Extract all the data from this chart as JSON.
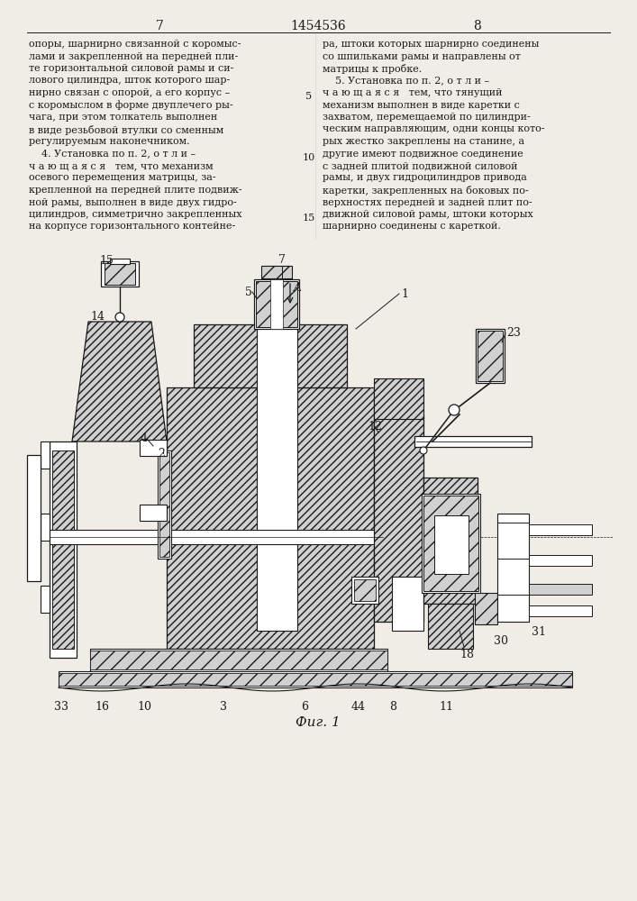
{
  "page_width": 7.07,
  "page_height": 10.0,
  "background_color": "#f0ede6",
  "header_left_number": "7",
  "header_center_number": "1454536",
  "header_right_number": "8",
  "text_color": "#1a1a1a",
  "line_color": "#1a1a1a",
  "figure_caption": "Фиг. 1",
  "left_column_text": [
    "опоры, шарнирно связанной с коромыс-",
    "лами и закрепленной на передней пли-",
    "те горизонтальной силовой рамы и си-",
    "лового цилиндра, шток которого шар-",
    "нирно связан с опорой, а его корпус –",
    "с коромыслом в форме двуплечего ры-",
    "чага, при этом толкатель выполнен",
    "в виде резьбовой втулки со сменным",
    "регулируемым наконечником.",
    "    4. Установка по п. 2, о т л и –",
    "ч а ю щ а я с я   тем, что механизм",
    "осевого перемещения матрицы, за-",
    "крепленной на передней плите подвиж-",
    "ной рамы, выполнен в виде двух гидро-",
    "цилиндров, симметрично закрепленных",
    "на корпусе горизонтального контейне-"
  ],
  "right_column_text": [
    "ра, штоки которых шарнирно соединены",
    "со шпильками рамы и направлены от",
    "матрицы к пробке.",
    "    5. Установка по п. 2, о т л и –",
    "ч а ю щ а я с я   тем, что тянущий",
    "механизм выполнен в виде каретки с",
    "захватом, перемещаемой по цилиндри-",
    "ческим направляющим, одни концы кото-",
    "рых жестко закреплены на станине, а",
    "другие имеют подвижное соединение",
    "с задней плитой подвижной силовой",
    "рамы, и двух гидроцилиндров привода",
    "каретки, закрепленных на боковых по-",
    "верхностях передней и задней плит по-",
    "движной силовой рамы, штоки которых",
    "шарнирно соединены с кареткой."
  ]
}
